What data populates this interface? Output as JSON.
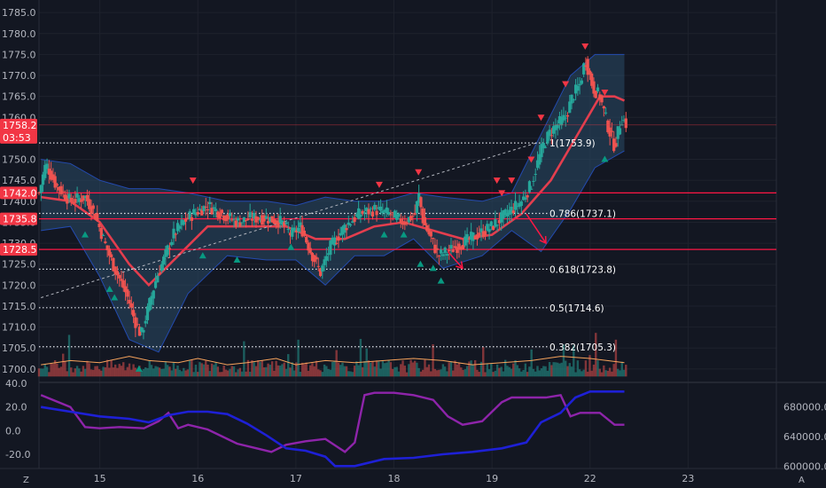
{
  "chart_data": {
    "type": "candlestick",
    "price_axis": {
      "ticks": [
        "1785.0",
        "1780.0",
        "1775.0",
        "1770.0",
        "1765.0",
        "1760.0",
        "1755.0",
        "1750.0",
        "1745.0",
        "1740.0",
        "1735.0",
        "1730.0",
        "1725.0",
        "1720.0",
        "1715.0",
        "1710.0",
        "1705.0",
        "1700.0"
      ],
      "range": [
        1697,
        1788
      ]
    },
    "time_axis": {
      "ticks": [
        {
          "label": "15",
          "day": 15
        },
        {
          "label": "16",
          "day": 16
        },
        {
          "label": "17",
          "day": 17
        },
        {
          "label": "18",
          "day": 18
        },
        {
          "label": "19",
          "day": 19
        },
        {
          "label": "22",
          "day": 20
        },
        {
          "label": "23",
          "day": 21
        }
      ],
      "range": [
        14.38,
        21.9
      ]
    },
    "price_tags": [
      {
        "value": 1758.2,
        "label": "1758.2",
        "sub": "03:53"
      },
      {
        "value": 1742.0,
        "label": "1742.0"
      },
      {
        "value": 1735.8,
        "label": "1735.8"
      },
      {
        "value": 1728.5,
        "label": "1728.5"
      }
    ],
    "horizontal_lines": [
      1742.0,
      1735.8,
      1728.5
    ],
    "fib_levels": [
      {
        "value": 1753.9,
        "label": "1(1753.9)"
      },
      {
        "value": 1737.1,
        "label": "0.786(1737.1)"
      },
      {
        "value": 1723.8,
        "label": "0.618(1723.8)"
      },
      {
        "value": 1714.6,
        "label": "0.5(1714.6)"
      },
      {
        "value": 1705.3,
        "label": "0.382(1705.3)"
      }
    ],
    "trend_line": {
      "from": [
        14.4,
        1717
      ],
      "to": [
        19.45,
        1753.9
      ]
    },
    "price_path": [
      [
        14.38,
        1742
      ],
      [
        14.45,
        1749
      ],
      [
        14.55,
        1744
      ],
      [
        14.7,
        1740
      ],
      [
        14.85,
        1741
      ],
      [
        14.95,
        1737
      ],
      [
        15.05,
        1730
      ],
      [
        15.15,
        1724
      ],
      [
        15.25,
        1719
      ],
      [
        15.3,
        1716
      ],
      [
        15.35,
        1712
      ],
      [
        15.42,
        1708
      ],
      [
        15.5,
        1715
      ],
      [
        15.58,
        1722
      ],
      [
        15.65,
        1726
      ],
      [
        15.75,
        1732
      ],
      [
        15.85,
        1735
      ],
      [
        15.95,
        1737
      ],
      [
        16.1,
        1739
      ],
      [
        16.25,
        1737
      ],
      [
        16.4,
        1735
      ],
      [
        16.55,
        1736
      ],
      [
        16.7,
        1736
      ],
      [
        16.85,
        1735
      ],
      [
        16.95,
        1732
      ],
      [
        17.05,
        1734
      ],
      [
        17.15,
        1728
      ],
      [
        17.25,
        1723
      ],
      [
        17.35,
        1729
      ],
      [
        17.5,
        1734
      ],
      [
        17.65,
        1737
      ],
      [
        17.8,
        1738
      ],
      [
        17.95,
        1737
      ],
      [
        18.1,
        1735
      ],
      [
        18.22,
        1737
      ],
      [
        18.25,
        1742
      ],
      [
        18.3,
        1735
      ],
      [
        18.38,
        1731
      ],
      [
        18.45,
        1727
      ],
      [
        18.55,
        1728
      ],
      [
        18.7,
        1730
      ],
      [
        18.85,
        1732
      ],
      [
        19.0,
        1734
      ],
      [
        19.15,
        1737
      ],
      [
        19.3,
        1740
      ],
      [
        19.4,
        1744
      ],
      [
        19.5,
        1752
      ],
      [
        19.58,
        1756
      ],
      [
        19.65,
        1758
      ],
      [
        19.75,
        1760
      ],
      [
        19.82,
        1765
      ],
      [
        19.9,
        1768
      ],
      [
        19.95,
        1774
      ],
      [
        20.03,
        1767
      ],
      [
        20.1,
        1765
      ],
      [
        20.18,
        1758
      ],
      [
        20.25,
        1753
      ],
      [
        20.32,
        1760
      ],
      [
        20.38,
        1758
      ]
    ],
    "bollinger": {
      "upper": [
        [
          14.4,
          1750
        ],
        [
          14.7,
          1749
        ],
        [
          15.0,
          1745
        ],
        [
          15.3,
          1743
        ],
        [
          15.6,
          1743
        ],
        [
          15.9,
          1742
        ],
        [
          16.3,
          1740
        ],
        [
          16.7,
          1740
        ],
        [
          17.0,
          1739
        ],
        [
          17.3,
          1741
        ],
        [
          17.6,
          1740
        ],
        [
          17.9,
          1740
        ],
        [
          18.2,
          1742
        ],
        [
          18.5,
          1741
        ],
        [
          18.9,
          1740
        ],
        [
          19.2,
          1742
        ],
        [
          19.5,
          1756
        ],
        [
          19.8,
          1770
        ],
        [
          20.05,
          1775
        ],
        [
          20.35,
          1775
        ]
      ],
      "lower": [
        [
          14.4,
          1733
        ],
        [
          14.7,
          1734
        ],
        [
          15.0,
          1722
        ],
        [
          15.3,
          1707
        ],
        [
          15.6,
          1704
        ],
        [
          15.9,
          1718
        ],
        [
          16.3,
          1727
        ],
        [
          16.7,
          1726
        ],
        [
          17.0,
          1726
        ],
        [
          17.3,
          1720
        ],
        [
          17.6,
          1727
        ],
        [
          17.9,
          1727
        ],
        [
          18.2,
          1731
        ],
        [
          18.5,
          1724
        ],
        [
          18.9,
          1727
        ],
        [
          19.2,
          1733
        ],
        [
          19.5,
          1728
        ],
        [
          19.8,
          1738
        ],
        [
          20.05,
          1748
        ],
        [
          20.35,
          1752
        ]
      ],
      "basis": [
        [
          14.4,
          1741
        ],
        [
          14.7,
          1740
        ],
        [
          15.0,
          1735
        ],
        [
          15.3,
          1725
        ],
        [
          15.5,
          1720
        ],
        [
          15.8,
          1727
        ],
        [
          16.1,
          1734
        ],
        [
          16.5,
          1734
        ],
        [
          16.9,
          1734
        ],
        [
          17.2,
          1731
        ],
        [
          17.5,
          1731
        ],
        [
          17.8,
          1734
        ],
        [
          18.1,
          1735
        ],
        [
          18.4,
          1733
        ],
        [
          18.7,
          1731
        ],
        [
          19.0,
          1732
        ],
        [
          19.3,
          1737
        ],
        [
          19.6,
          1745
        ],
        [
          19.9,
          1757
        ],
        [
          20.1,
          1765
        ],
        [
          20.25,
          1765
        ],
        [
          20.35,
          1764
        ]
      ]
    },
    "sell_signals": [
      [
        15.95,
        1745
      ],
      [
        18.25,
        1747
      ],
      [
        17.85,
        1744
      ],
      [
        19.05,
        1745
      ],
      [
        19.1,
        1742
      ],
      [
        19.2,
        1745
      ],
      [
        19.4,
        1750
      ],
      [
        19.5,
        1760
      ],
      [
        19.75,
        1768
      ],
      [
        19.95,
        1777
      ],
      [
        20.15,
        1766
      ]
    ],
    "buy_signals": [
      [
        14.85,
        1732
      ],
      [
        15.1,
        1719
      ],
      [
        15.15,
        1717
      ],
      [
        15.4,
        1700
      ],
      [
        16.05,
        1727
      ],
      [
        16.4,
        1726
      ],
      [
        16.95,
        1729
      ],
      [
        17.9,
        1732
      ],
      [
        18.1,
        1732
      ],
      [
        18.27,
        1725
      ],
      [
        18.4,
        1724
      ],
      [
        18.48,
        1721
      ],
      [
        20.15,
        1750
      ]
    ],
    "arrows": [
      {
        "from": [
          18.55,
          1728
        ],
        "to": [
          18.7,
          1724
        ]
      },
      {
        "from": [
          19.35,
          1737
        ],
        "to": [
          19.55,
          1730
        ]
      }
    ],
    "volume_line": [
      [
        14.4,
        1701
      ],
      [
        14.7,
        1702
      ],
      [
        15.0,
        1701.5
      ],
      [
        15.3,
        1703
      ],
      [
        15.5,
        1702
      ],
      [
        15.8,
        1701.5
      ],
      [
        16.0,
        1702.5
      ],
      [
        16.3,
        1701
      ],
      [
        16.5,
        1701.5
      ],
      [
        16.8,
        1702.5
      ],
      [
        17.0,
        1701
      ],
      [
        17.3,
        1702
      ],
      [
        17.6,
        1701.5
      ],
      [
        17.9,
        1702
      ],
      [
        18.2,
        1702.5
      ],
      [
        18.5,
        1702
      ],
      [
        18.8,
        1701
      ],
      [
        19.1,
        1701.5
      ],
      [
        19.4,
        1702
      ],
      [
        19.7,
        1703
      ],
      [
        20.0,
        1702.5
      ],
      [
        20.35,
        1701.5
      ]
    ],
    "oscillator": {
      "ticks": [
        "40.0",
        "20.0",
        "0.0",
        "-20.0"
      ],
      "range": [
        -32,
        40
      ],
      "purple": [
        [
          14.4,
          30
        ],
        [
          14.7,
          20
        ],
        [
          14.85,
          3
        ],
        [
          15.0,
          2
        ],
        [
          15.2,
          3
        ],
        [
          15.45,
          2
        ],
        [
          15.6,
          8
        ],
        [
          15.7,
          15
        ],
        [
          15.8,
          2
        ],
        [
          15.9,
          5
        ],
        [
          16.1,
          1
        ],
        [
          16.25,
          -5
        ],
        [
          16.4,
          -11
        ],
        [
          16.6,
          -15
        ],
        [
          16.75,
          -18
        ],
        [
          16.9,
          -12
        ],
        [
          17.1,
          -9
        ],
        [
          17.3,
          -7
        ],
        [
          17.5,
          -18
        ],
        [
          17.6,
          -10
        ],
        [
          17.7,
          30
        ],
        [
          17.8,
          32
        ],
        [
          18.0,
          32
        ],
        [
          18.2,
          30
        ],
        [
          18.4,
          26
        ],
        [
          18.55,
          12
        ],
        [
          18.7,
          5
        ],
        [
          18.9,
          8
        ],
        [
          19.1,
          24
        ],
        [
          19.2,
          28
        ],
        [
          19.4,
          28
        ],
        [
          19.55,
          28
        ],
        [
          19.7,
          30
        ],
        [
          19.8,
          12
        ],
        [
          19.9,
          15
        ],
        [
          20.1,
          15
        ],
        [
          20.25,
          5
        ],
        [
          20.35,
          5
        ]
      ],
      "blue": [
        [
          14.4,
          20
        ],
        [
          14.7,
          16
        ],
        [
          15.0,
          12
        ],
        [
          15.3,
          10
        ],
        [
          15.5,
          7
        ],
        [
          15.7,
          13
        ],
        [
          15.9,
          16
        ],
        [
          16.1,
          16
        ],
        [
          16.3,
          14
        ],
        [
          16.5,
          6
        ],
        [
          16.7,
          -4
        ],
        [
          16.9,
          -15
        ],
        [
          17.1,
          -17
        ],
        [
          17.3,
          -22
        ],
        [
          17.4,
          -30
        ],
        [
          17.6,
          -30
        ],
        [
          17.9,
          -24
        ],
        [
          18.2,
          -23
        ],
        [
          18.5,
          -20
        ],
        [
          18.8,
          -18
        ],
        [
          19.1,
          -15
        ],
        [
          19.35,
          -10
        ],
        [
          19.5,
          7
        ],
        [
          19.7,
          15
        ],
        [
          19.85,
          28
        ],
        [
          20.0,
          33
        ],
        [
          20.35,
          33
        ]
      ],
      "right_ticks": [
        {
          "label": "680000.0",
          "y": 20
        },
        {
          "label": "640000.0",
          "y": -5
        },
        {
          "label": "600000.0",
          "y": -30
        }
      ]
    },
    "colors": {
      "background": "#131722",
      "up": "#26a69a",
      "down": "#ef5350",
      "basis": "#e33e4e",
      "band_fill": "#2a4a66",
      "band_edge": "#2962ff",
      "level_line": "#ff1744",
      "volume_ma": "#f7a35c",
      "osc_purple": "#8e24aa",
      "osc_blue": "#1e20d6"
    }
  },
  "footer": {
    "left_icon_label": "Z",
    "right_icon_label": "A"
  }
}
